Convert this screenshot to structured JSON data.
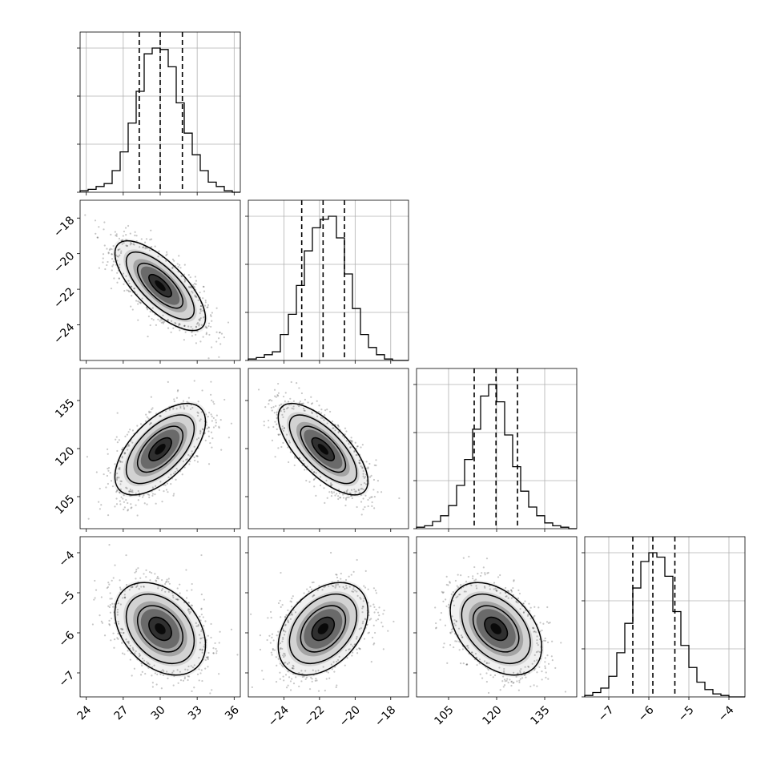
{
  "chart_data": {
    "type": "corner",
    "title": "",
    "parameters": [
      {
        "name": "",
        "range": [
          23.5,
          36.5
        ],
        "ticks": [
          24,
          27,
          30,
          33,
          36
        ],
        "tick_labels": [
          "24",
          "27",
          "30",
          "33",
          "36"
        ],
        "quantiles": [
          28.3,
          30.0,
          31.8
        ],
        "hist_bins": {
          "start": 23.5,
          "width": 0.65
        },
        "hist_counts": [
          1,
          2,
          4,
          6,
          15,
          28,
          48,
          70,
          96,
          100,
          99,
          87,
          62,
          41,
          26,
          15,
          7,
          4,
          1,
          0
        ]
      },
      {
        "name": "",
        "range": [
          -26.0,
          -17.0
        ],
        "ticks": [
          -24,
          -22,
          -20,
          -18
        ],
        "tick_labels": [
          "−24",
          "−22",
          "−20",
          "−18"
        ],
        "quantiles": [
          -23.0,
          -21.8,
          -20.6
        ],
        "hist_bins": {
          "start": -26.0,
          "width": 0.45
        },
        "hist_counts": [
          1,
          2,
          4,
          6,
          18,
          32,
          52,
          76,
          92,
          98,
          100,
          85,
          60,
          36,
          18,
          9,
          4,
          1,
          0,
          0
        ]
      },
      {
        "name": "",
        "range": [
          95,
          145
        ],
        "ticks": [
          105,
          120,
          135
        ],
        "tick_labels": [
          "105",
          "120",
          "135"
        ],
        "quantiles": [
          113.0,
          119.8,
          126.5
        ],
        "hist_bins": {
          "start": 95,
          "width": 2.5
        },
        "hist_counts": [
          1,
          2,
          5,
          9,
          16,
          30,
          48,
          69,
          92,
          100,
          88,
          65,
          43,
          26,
          15,
          9,
          4,
          2,
          1,
          0
        ]
      },
      {
        "name": "",
        "range": [
          -7.6,
          -3.6
        ],
        "ticks": [
          -7,
          -6,
          -5,
          -4
        ],
        "tick_labels": [
          "−7",
          "−6",
          "−5",
          "−4"
        ],
        "quantiles": [
          -6.4,
          -5.9,
          -5.35
        ],
        "hist_bins": {
          "start": -7.6,
          "width": 0.2
        },
        "hist_counts": [
          1,
          3,
          6,
          14,
          30,
          50,
          74,
          92,
          98,
          95,
          82,
          58,
          35,
          20,
          10,
          5,
          2,
          1,
          0,
          0
        ]
      }
    ],
    "pairs": [
      {
        "x": 0,
        "y": 1,
        "mean": [
          30.0,
          -21.8
        ],
        "sd": [
          1.75,
          1.2
        ],
        "corr": -0.72
      },
      {
        "x": 0,
        "y": 2,
        "mean": [
          30.0,
          119.8
        ],
        "sd": [
          1.75,
          6.8
        ],
        "corr": 0.6
      },
      {
        "x": 1,
        "y": 2,
        "mean": [
          -21.8,
          119.8
        ],
        "sd": [
          1.2,
          6.8
        ],
        "corr": -0.7
      },
      {
        "x": 0,
        "y": 3,
        "mean": [
          30.0,
          -5.9
        ],
        "sd": [
          1.75,
          0.55
        ],
        "corr": -0.35
      },
      {
        "x": 1,
        "y": 3,
        "mean": [
          -21.8,
          -5.9
        ],
        "sd": [
          1.2,
          0.55
        ],
        "corr": 0.38
      },
      {
        "x": 2,
        "y": 3,
        "mean": [
          119.8,
          -5.9
        ],
        "sd": [
          6.8,
          0.55
        ],
        "corr": -0.4
      }
    ],
    "contour_levels_sigma": [
      0.5,
      1.0,
      1.5,
      2.0
    ],
    "grid": true,
    "legend": "none",
    "colors": {
      "line": "#000000",
      "grid": "#b0b0b0",
      "points": "#000000",
      "fill": "#000000"
    }
  }
}
